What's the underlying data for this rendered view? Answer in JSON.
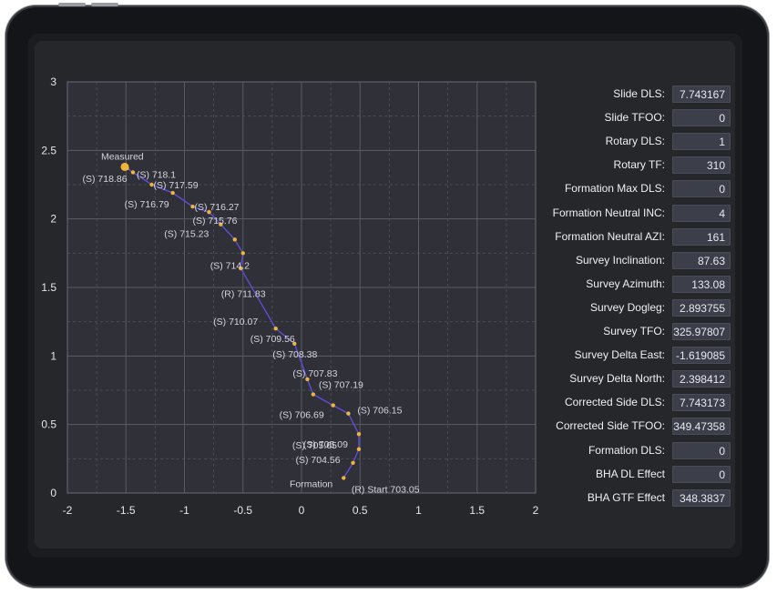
{
  "chart_data": {
    "type": "line",
    "xlim": [
      -2,
      2
    ],
    "ylim": [
      0,
      3
    ],
    "x_ticks": [
      "-2",
      "-1.5",
      "-1",
      "-0.5",
      "0",
      "0.5",
      "1",
      "1.5",
      "2"
    ],
    "y_ticks": [
      "0",
      "0.5",
      "1",
      "1.5",
      "2",
      "2.5",
      "3"
    ],
    "grid": true,
    "line_color": "#5b4fd6",
    "point_color": "#f0b43a",
    "points": [
      {
        "x": 0.36,
        "y": 0.11,
        "label": "Formation"
      },
      {
        "x": 0.44,
        "y": 0.22,
        "label": "(S) 704.56"
      },
      {
        "x": 0.49,
        "y": 0.32,
        "label": "(S) 705.09"
      },
      {
        "x": 0.49,
        "y": 0.43,
        "label": "(S) 705.65"
      },
      {
        "x": 0.4,
        "y": 0.58,
        "label": "(S) 706.15"
      },
      {
        "x": 0.27,
        "y": 0.64,
        "label": "(S) 706.69"
      },
      {
        "x": 0.1,
        "y": 0.72,
        "label": "(S) 707.19"
      },
      {
        "x": 0.05,
        "y": 0.83,
        "label": "(S) 707.83"
      },
      {
        "x": -0.06,
        "y": 1.09,
        "label": "(S) 708.38"
      },
      {
        "x": -0.22,
        "y": 1.2,
        "label": "(S) 709.56"
      },
      {
        "x": -0.52,
        "y": 1.64,
        "label": "(S) 710.07"
      },
      {
        "x": -0.5,
        "y": 1.75,
        "label": "(R) 711.83"
      },
      {
        "x": -0.57,
        "y": 1.85,
        "label": "(S) 714.2"
      },
      {
        "x": -0.69,
        "y": 1.96,
        "label": "(S) 715.23"
      },
      {
        "x": -0.79,
        "y": 2.05,
        "label": "(S) 715.76"
      },
      {
        "x": -0.93,
        "y": 2.09,
        "label": "(S) 716.27"
      },
      {
        "x": -1.1,
        "y": 2.19,
        "label": "(S) 716.79"
      },
      {
        "x": -1.28,
        "y": 2.25,
        "label": "(S) 717.59"
      },
      {
        "x": -1.44,
        "y": 2.34,
        "label": "(S) 718.1"
      },
      {
        "x": -1.49,
        "y": 2.37,
        "label": "(S) 718.86"
      },
      {
        "x": -1.51,
        "y": 2.38,
        "label": "Measured"
      }
    ],
    "extra_labels": [
      {
        "text": "(R) Start 703.05",
        "x": 0.38,
        "y": 0.07
      }
    ]
  },
  "stats": [
    {
      "label": "Slide DLS:",
      "value": "7.743167"
    },
    {
      "label": "Slide TFOO:",
      "value": "0"
    },
    {
      "label": "Rotary DLS:",
      "value": "1"
    },
    {
      "label": "Rotary TF:",
      "value": "310"
    },
    {
      "label": "Formation Max DLS:",
      "value": "0"
    },
    {
      "label": "Formation Neutral INC:",
      "value": "4"
    },
    {
      "label": "Formation Neutral AZI:",
      "value": "161"
    },
    {
      "label": "Survey Inclination:",
      "value": "87.63"
    },
    {
      "label": "Survey Azimuth:",
      "value": "133.08"
    },
    {
      "label": "Survey Dogleg:",
      "value": "2.893755"
    },
    {
      "label": "Survey TFO:",
      "value": "325.97807"
    },
    {
      "label": "Survey Delta East:",
      "value": "-1.619085"
    },
    {
      "label": "Survey Delta North:",
      "value": "2.398412"
    },
    {
      "label": "Corrected Side DLS:",
      "value": "7.743173"
    },
    {
      "label": "Corrected Side TFOO:",
      "value": "349.47358"
    },
    {
      "label": "Formation DLS:",
      "value": "0"
    },
    {
      "label": "BHA DL Effect",
      "value": "0"
    },
    {
      "label": "BHA GTF Effect",
      "value": "348.3837"
    }
  ]
}
